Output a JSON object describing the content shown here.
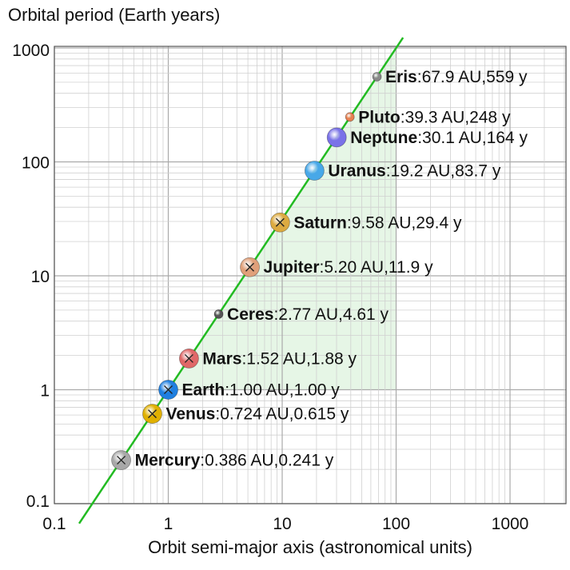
{
  "chart_data": {
    "type": "scatter",
    "title": "",
    "xlabel": "Orbit semi-major axis (astronomical units)",
    "ylabel": "Orbital period (Earth years)",
    "x_scale": "log",
    "y_scale": "log",
    "xlim": [
      0.1,
      3000
    ],
    "ylim": [
      0.1,
      1000
    ],
    "x_ticks": [
      "0.1",
      "1",
      "10",
      "100",
      "1000"
    ],
    "y_ticks": [
      "0.1",
      "1",
      "10",
      "100",
      "1000"
    ],
    "grid": true,
    "fit_line": "T = a^1.5 (Kepler's third law)",
    "points": [
      {
        "name": "Mercury",
        "x": 0.386,
        "y": 0.241,
        "label": ":0.386 AU,0.241 y",
        "color": "#a8a8a8",
        "marker": "cross"
      },
      {
        "name": "Venus",
        "x": 0.724,
        "y": 0.615,
        "label": ":0.724 AU,0.615 y",
        "color": "#e0b000",
        "marker": "cross"
      },
      {
        "name": "Earth",
        "x": 1.0,
        "y": 1.0,
        "label": ":1.00 AU,1.00 y",
        "color": "#1f7fe0",
        "marker": "cross"
      },
      {
        "name": "Mars",
        "x": 1.52,
        "y": 1.88,
        "label": ":1.52 AU,1.88 y",
        "color": "#e06868",
        "marker": "cross"
      },
      {
        "name": "Ceres",
        "x": 2.77,
        "y": 4.61,
        "label": ":2.77 AU,4.61 y",
        "color": "#555555",
        "marker": "dot"
      },
      {
        "name": "Jupiter",
        "x": 5.2,
        "y": 11.9,
        "label": ":5.20 AU,11.9 y",
        "color": "#e0a07a",
        "marker": "cross"
      },
      {
        "name": "Saturn",
        "x": 9.58,
        "y": 29.4,
        "label": ":9.58 AU,29.4 y",
        "color": "#dcaa40",
        "marker": "cross"
      },
      {
        "name": "Uranus",
        "x": 19.2,
        "y": 83.7,
        "label": ":19.2 AU,83.7 y",
        "color": "#48a8e8",
        "marker": "plain"
      },
      {
        "name": "Neptune",
        "x": 30.1,
        "y": 164,
        "label": ":30.1 AU,164 y",
        "color": "#7a72e8",
        "marker": "plain"
      },
      {
        "name": "Pluto",
        "x": 39.3,
        "y": 248,
        "label": ":39.3 AU,248 y",
        "color": "#e88050",
        "marker": "dot"
      },
      {
        "name": "Eris",
        "x": 67.9,
        "y": 559,
        "label": ":67.9 AU,559 y",
        "color": "#888888",
        "marker": "dot"
      }
    ]
  },
  "colors": {
    "fit_line": "#22bb22",
    "shade": "#e6f6e6",
    "grid": "#d0d0d0",
    "axis": "#555555"
  }
}
